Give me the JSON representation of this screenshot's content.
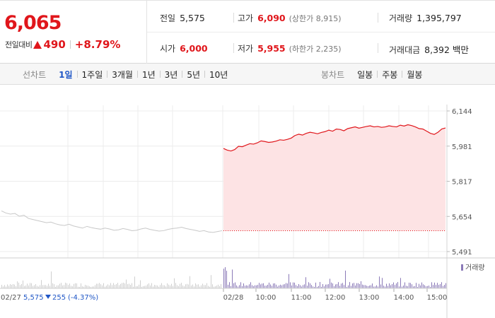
{
  "quote": {
    "price": "6,065",
    "change_label": "전일대비",
    "change_amount": "490",
    "change_percent": "+8.79%"
  },
  "stats": {
    "prev_close_label": "전일",
    "prev_close": "5,575",
    "high_label": "고가",
    "high": "6,090",
    "upper_limit": "(상한가 8,915)",
    "volume_label": "거래량",
    "volume": "1,395,797",
    "open_label": "시가",
    "open": "6,000",
    "low_label": "저가",
    "low": "5,955",
    "lower_limit": "(하한가 2,235)",
    "value_label": "거래대금",
    "value": "8,392 백만"
  },
  "toolbar": {
    "line_chart_title": "선차트",
    "line_periods": [
      "1일",
      "1주일",
      "3개월",
      "1년",
      "3년",
      "5년",
      "10년"
    ],
    "active_period": "1일",
    "candle_chart_title": "봉차트",
    "candle_periods": [
      "일봉",
      "주봉",
      "월봉"
    ]
  },
  "colors": {
    "up": "#e0161b",
    "down": "#1f56c6",
    "area": "#fde3e4",
    "prev_line": "#c8c8c8",
    "volume": "#8b7ab8"
  },
  "chart_data": {
    "type": "line",
    "y_ticks": [
      "6,144",
      "5,981",
      "5,817",
      "5,654",
      "5,491"
    ],
    "ylim": [
      5491,
      6144
    ],
    "x_labels": [
      "02/28",
      "10:00",
      "11:00",
      "12:00",
      "13:00",
      "14:00",
      "15:00"
    ],
    "volume_label": "거래량",
    "prev_day": {
      "label": "02/27",
      "close": "5,575",
      "change": "255",
      "change_percent": "(-4.37%)"
    },
    "prev_series": [
      5680,
      5670,
      5665,
      5668,
      5655,
      5660,
      5645,
      5640,
      5635,
      5630,
      5625,
      5628,
      5620,
      5615,
      5612,
      5618,
      5610,
      5605,
      5600,
      5608,
      5602,
      5598,
      5595,
      5600,
      5596,
      5590,
      5592,
      5598,
      5594,
      5588,
      5590,
      5596,
      5600,
      5594,
      5590,
      5586,
      5588,
      5594,
      5598,
      5600,
      5604,
      5598,
      5594,
      5590,
      5585,
      5588,
      5582,
      5580,
      5584,
      5588
    ],
    "today_series": [
      5970,
      5962,
      5958,
      5965,
      5980,
      5978,
      5985,
      5992,
      5990,
      5996,
      6005,
      6002,
      5998,
      6000,
      6004,
      6010,
      6008,
      6012,
      6018,
      6030,
      6036,
      6032,
      6040,
      6045,
      6042,
      6038,
      6044,
      6048,
      6055,
      6050,
      6060,
      6058,
      6052,
      6062,
      6066,
      6070,
      6064,
      6068,
      6072,
      6075,
      6070,
      6072,
      6068,
      6070,
      6075,
      6072,
      6070,
      6078,
      6074,
      6080,
      6076,
      6070,
      6062,
      6060,
      6050,
      6040,
      6035,
      6045,
      6060,
      6065
    ]
  }
}
